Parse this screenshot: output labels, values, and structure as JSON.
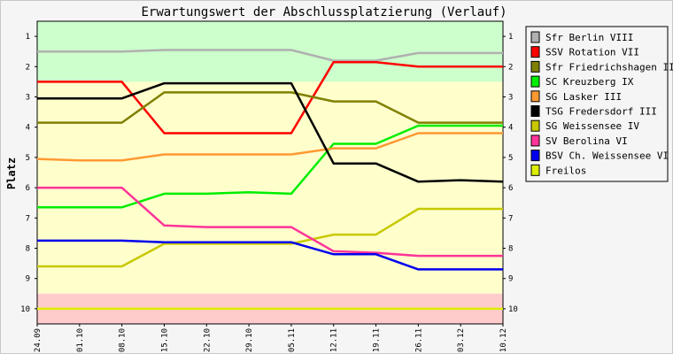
{
  "chart_data": {
    "type": "line",
    "title": "Erwartungswert der Abschlussplatzierung (Verlauf)",
    "xlabel": "",
    "ylabel": "Platz",
    "x": [
      "24.09",
      "01.10",
      "08.10",
      "15.10",
      "22.10",
      "29.10",
      "05.11",
      "12.11",
      "19.11",
      "26.11",
      "03.12",
      "10.12"
    ],
    "ylim": [
      10.5,
      0.5
    ],
    "yticks": [
      1,
      2,
      3,
      4,
      5,
      6,
      7,
      8,
      9,
      10
    ],
    "y_inverted": true,
    "bands": [
      {
        "from": 0.5,
        "to": 2.5,
        "color": "#ccffcc"
      },
      {
        "from": 2.5,
        "to": 9.5,
        "color": "#ffffcc"
      },
      {
        "from": 9.5,
        "to": 10.5,
        "color": "#ffcccc"
      }
    ],
    "legend_position": "right",
    "series": [
      {
        "name": "Sfr Berlin VIII",
        "color": "#b0b0b0",
        "values": [
          1.5,
          1.5,
          1.5,
          1.45,
          1.45,
          1.45,
          1.45,
          1.8,
          1.8,
          1.55,
          1.55,
          1.55
        ]
      },
      {
        "name": "SSV Rotation VII",
        "color": "#ff0000",
        "values": [
          2.5,
          2.5,
          2.5,
          4.2,
          4.2,
          4.2,
          4.2,
          1.85,
          1.85,
          2.0,
          2.0,
          2.0
        ]
      },
      {
        "name": "Sfr Friedrichshagen III",
        "color": "#808000",
        "values": [
          3.85,
          3.85,
          3.85,
          2.85,
          2.85,
          2.85,
          2.85,
          3.15,
          3.15,
          3.85,
          3.85,
          3.85
        ]
      },
      {
        "name": "SC Kreuzberg IX",
        "color": "#00ee00",
        "values": [
          6.65,
          6.65,
          6.65,
          6.2,
          6.2,
          6.15,
          6.2,
          4.55,
          4.55,
          3.95,
          3.95,
          3.95
        ]
      },
      {
        "name": "SG Lasker III",
        "color": "#ff9933",
        "values": [
          5.05,
          5.1,
          5.1,
          4.9,
          4.9,
          4.9,
          4.9,
          4.7,
          4.7,
          4.2,
          4.2,
          4.2
        ]
      },
      {
        "name": "TSG Fredersdorf III",
        "color": "#000000",
        "values": [
          3.05,
          3.05,
          3.05,
          2.55,
          2.55,
          2.55,
          2.55,
          5.2,
          5.2,
          5.8,
          5.75,
          5.8
        ]
      },
      {
        "name": "SG Weissensee IV",
        "color": "#c8c800",
        "values": [
          8.6,
          8.6,
          8.6,
          7.85,
          7.85,
          7.85,
          7.85,
          7.55,
          7.55,
          6.7,
          6.7,
          6.7
        ]
      },
      {
        "name": "SV Berolina VI",
        "color": "#ff3399",
        "values": [
          6.0,
          6.0,
          6.0,
          7.25,
          7.3,
          7.3,
          7.3,
          8.1,
          8.15,
          8.25,
          8.25,
          8.25
        ]
      },
      {
        "name": "BSV Ch. Weissensee VI",
        "color": "#0000ee",
        "values": [
          7.75,
          7.75,
          7.75,
          7.8,
          7.8,
          7.8,
          7.8,
          8.2,
          8.2,
          8.7,
          8.7,
          8.7
        ]
      },
      {
        "name": "Freilos",
        "color": "#ddee00",
        "values": [
          10,
          10,
          10,
          10,
          10,
          10,
          10,
          10,
          10,
          10,
          10,
          10
        ]
      }
    ]
  }
}
